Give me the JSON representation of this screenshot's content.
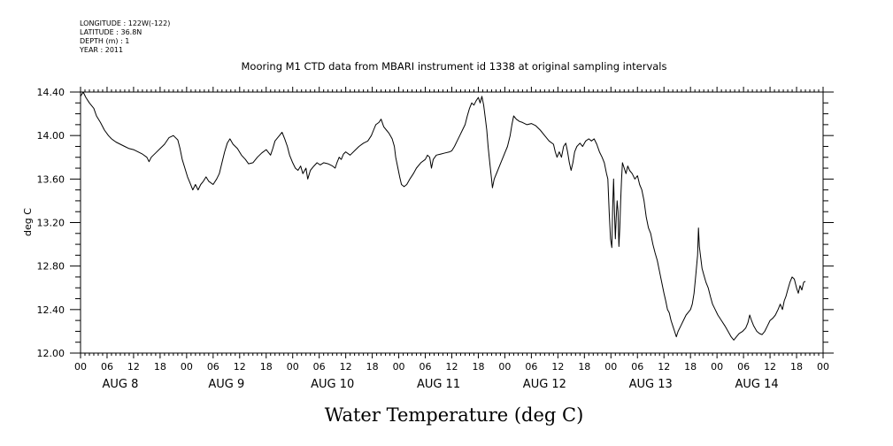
{
  "meta_lines": [
    "LONGITUDE : 122W(-122)",
    "LATITUDE : 36.8N",
    "DEPTH (m) : 1",
    "YEAR : 2011"
  ],
  "chart_data": {
    "type": "line",
    "title": "Mooring M1 CTD data from MBARI instrument id 1338 at original sampling intervals",
    "xlabel": "",
    "ylabel": "deg C",
    "bottom_title": "Water Temperature (deg C)",
    "x_unit": "hours since 2011-08-08 00:00",
    "xlim": [
      0,
      168
    ],
    "ylim": [
      12.0,
      14.4
    ],
    "yticks": [
      12.0,
      12.4,
      12.8,
      13.2,
      13.6,
      14.0,
      14.4
    ],
    "ytick_labels": [
      "12.00",
      "12.40",
      "12.80",
      "13.20",
      "13.60",
      "14.00",
      "14.40"
    ],
    "xtick_hours": [
      0,
      6,
      12,
      18,
      24,
      30,
      36,
      42,
      48,
      54,
      60,
      66,
      72,
      78,
      84,
      90,
      96,
      102,
      108,
      114,
      120,
      126,
      132,
      138,
      144,
      150,
      156,
      162,
      168
    ],
    "xtick_labels": [
      "00",
      "06",
      "12",
      "18",
      "00",
      "06",
      "12",
      "18",
      "00",
      "06",
      "12",
      "18",
      "00",
      "06",
      "12",
      "18",
      "00",
      "06",
      "12",
      "18",
      "00",
      "06",
      "12",
      "18",
      "00",
      "06",
      "12",
      "18",
      "00"
    ],
    "day_labels": [
      {
        "text": "AUG  8",
        "hour": 9
      },
      {
        "text": "AUG  9",
        "hour": 33
      },
      {
        "text": "AUG 10",
        "hour": 57
      },
      {
        "text": "AUG 11",
        "hour": 81
      },
      {
        "text": "AUG 12",
        "hour": 105
      },
      {
        "text": "AUG 13",
        "hour": 129
      },
      {
        "text": "AUG 14",
        "hour": 153
      }
    ],
    "grid": false,
    "series": [
      {
        "name": "",
        "color": "#000000",
        "points": [
          [
            0,
            14.36
          ],
          [
            0.6,
            14.4
          ],
          [
            1.2,
            14.35
          ],
          [
            2,
            14.3
          ],
          [
            3,
            14.25
          ],
          [
            3.6,
            14.18
          ],
          [
            4.5,
            14.12
          ],
          [
            5.4,
            14.05
          ],
          [
            6.3,
            14.0
          ],
          [
            7,
            13.97
          ],
          [
            8,
            13.94
          ],
          [
            9,
            13.92
          ],
          [
            10,
            13.9
          ],
          [
            11,
            13.88
          ],
          [
            12,
            13.87
          ],
          [
            13,
            13.85
          ],
          [
            14,
            13.83
          ],
          [
            15,
            13.8
          ],
          [
            15.5,
            13.76
          ],
          [
            16,
            13.8
          ],
          [
            17,
            13.84
          ],
          [
            18,
            13.88
          ],
          [
            19,
            13.92
          ],
          [
            20,
            13.98
          ],
          [
            21,
            14.0
          ],
          [
            22,
            13.96
          ],
          [
            22.5,
            13.88
          ],
          [
            23,
            13.78
          ],
          [
            23.6,
            13.7
          ],
          [
            24.2,
            13.62
          ],
          [
            24.8,
            13.56
          ],
          [
            25.4,
            13.5
          ],
          [
            26,
            13.55
          ],
          [
            26.6,
            13.5
          ],
          [
            27.2,
            13.55
          ],
          [
            27.8,
            13.58
          ],
          [
            28.4,
            13.62
          ],
          [
            29,
            13.58
          ],
          [
            30,
            13.55
          ],
          [
            30.8,
            13.6
          ],
          [
            31.4,
            13.65
          ],
          [
            32,
            13.75
          ],
          [
            32.6,
            13.85
          ],
          [
            33.2,
            13.93
          ],
          [
            33.8,
            13.97
          ],
          [
            34.5,
            13.92
          ],
          [
            35.5,
            13.88
          ],
          [
            36.4,
            13.82
          ],
          [
            37.3,
            13.78
          ],
          [
            38,
            13.74
          ],
          [
            39,
            13.75
          ],
          [
            40,
            13.8
          ],
          [
            41,
            13.84
          ],
          [
            42,
            13.87
          ],
          [
            43,
            13.82
          ],
          [
            43.5,
            13.88
          ],
          [
            44,
            13.95
          ],
          [
            45,
            14.0
          ],
          [
            45.6,
            14.03
          ],
          [
            46.2,
            13.97
          ],
          [
            46.8,
            13.9
          ],
          [
            47.3,
            13.82
          ],
          [
            48,
            13.75
          ],
          [
            48.6,
            13.7
          ],
          [
            49.2,
            13.68
          ],
          [
            49.8,
            13.72
          ],
          [
            50.3,
            13.65
          ],
          [
            51,
            13.7
          ],
          [
            51.4,
            13.6
          ],
          [
            52,
            13.68
          ],
          [
            52.8,
            13.72
          ],
          [
            53.5,
            13.75
          ],
          [
            54.2,
            13.73
          ],
          [
            55,
            13.75
          ],
          [
            56,
            13.74
          ],
          [
            57,
            13.72
          ],
          [
            57.6,
            13.7
          ],
          [
            58,
            13.75
          ],
          [
            58.5,
            13.8
          ],
          [
            59,
            13.78
          ],
          [
            59.5,
            13.83
          ],
          [
            60,
            13.85
          ],
          [
            61,
            13.82
          ],
          [
            62,
            13.86
          ],
          [
            63,
            13.9
          ],
          [
            64,
            13.93
          ],
          [
            65,
            13.95
          ],
          [
            65.8,
            14.0
          ],
          [
            66.3,
            14.05
          ],
          [
            66.8,
            14.1
          ],
          [
            67.5,
            14.12
          ],
          [
            68,
            14.15
          ],
          [
            68.6,
            14.08
          ],
          [
            69.2,
            14.05
          ],
          [
            69.8,
            14.02
          ],
          [
            70.5,
            13.97
          ],
          [
            71,
            13.9
          ],
          [
            71.3,
            13.8
          ],
          [
            71.8,
            13.7
          ],
          [
            72.2,
            13.62
          ],
          [
            72.6,
            13.55
          ],
          [
            73.2,
            13.53
          ],
          [
            73.8,
            13.55
          ],
          [
            74.5,
            13.6
          ],
          [
            75.3,
            13.65
          ],
          [
            76,
            13.7
          ],
          [
            77,
            13.75
          ],
          [
            78,
            13.78
          ],
          [
            78.5,
            13.82
          ],
          [
            79,
            13.8
          ],
          [
            79.4,
            13.7
          ],
          [
            79.8,
            13.78
          ],
          [
            80.5,
            13.82
          ],
          [
            81.5,
            13.83
          ],
          [
            82.5,
            13.84
          ],
          [
            83.5,
            13.85
          ],
          [
            84,
            13.86
          ],
          [
            84.6,
            13.9
          ],
          [
            85.2,
            13.95
          ],
          [
            85.8,
            14.0
          ],
          [
            86.4,
            14.05
          ],
          [
            87,
            14.1
          ],
          [
            87.5,
            14.18
          ],
          [
            88,
            14.25
          ],
          [
            88.5,
            14.3
          ],
          [
            89,
            14.28
          ],
          [
            89.5,
            14.32
          ],
          [
            90,
            14.35
          ],
          [
            90.4,
            14.3
          ],
          [
            90.8,
            14.36
          ],
          [
            91.2,
            14.28
          ],
          [
            91.6,
            14.15
          ],
          [
            91.9,
            14.05
          ],
          [
            92.2,
            13.9
          ],
          [
            92.6,
            13.75
          ],
          [
            93,
            13.6
          ],
          [
            93.2,
            13.52
          ],
          [
            93.6,
            13.6
          ],
          [
            94.2,
            13.66
          ],
          [
            94.8,
            13.72
          ],
          [
            95.4,
            13.78
          ],
          [
            96,
            13.84
          ],
          [
            96.6,
            13.9
          ],
          [
            97.2,
            14.0
          ],
          [
            97.6,
            14.1
          ],
          [
            98,
            14.18
          ],
          [
            98.6,
            14.15
          ],
          [
            99.3,
            14.13
          ],
          [
            100,
            14.12
          ],
          [
            101,
            14.1
          ],
          [
            102,
            14.11
          ],
          [
            103,
            14.09
          ],
          [
            104,
            14.05
          ],
          [
            105,
            14.0
          ],
          [
            106,
            13.95
          ],
          [
            107,
            13.92
          ],
          [
            107.4,
            13.85
          ],
          [
            107.8,
            13.8
          ],
          [
            108.3,
            13.85
          ],
          [
            108.8,
            13.8
          ],
          [
            109.3,
            13.9
          ],
          [
            109.8,
            13.93
          ],
          [
            110.2,
            13.85
          ],
          [
            110.6,
            13.75
          ],
          [
            111,
            13.68
          ],
          [
            111.4,
            13.75
          ],
          [
            111.8,
            13.85
          ],
          [
            112.3,
            13.9
          ],
          [
            113,
            13.93
          ],
          [
            113.6,
            13.9
          ],
          [
            114.3,
            13.95
          ],
          [
            115,
            13.97
          ],
          [
            115.6,
            13.95
          ],
          [
            116.2,
            13.97
          ],
          [
            116.8,
            13.92
          ],
          [
            117.4,
            13.85
          ],
          [
            118,
            13.8
          ],
          [
            118.5,
            13.75
          ],
          [
            119,
            13.65
          ],
          [
            119.3,
            13.6
          ],
          [
            119.6,
            13.3
          ],
          [
            119.9,
            13.05
          ],
          [
            120.2,
            12.97
          ],
          [
            120.4,
            13.35
          ],
          [
            120.6,
            13.6
          ],
          [
            120.8,
            13.3
          ],
          [
            121,
            13.05
          ],
          [
            121.2,
            13.25
          ],
          [
            121.4,
            13.4
          ],
          [
            121.6,
            13.3
          ],
          [
            121.8,
            12.98
          ],
          [
            122,
            13.15
          ],
          [
            122.2,
            13.4
          ],
          [
            122.4,
            13.6
          ],
          [
            122.6,
            13.75
          ],
          [
            123,
            13.7
          ],
          [
            123.4,
            13.65
          ],
          [
            123.8,
            13.72
          ],
          [
            124.2,
            13.68
          ],
          [
            124.8,
            13.65
          ],
          [
            125.4,
            13.6
          ],
          [
            126,
            13.63
          ],
          [
            126.5,
            13.55
          ],
          [
            127,
            13.5
          ],
          [
            127.5,
            13.4
          ],
          [
            128,
            13.25
          ],
          [
            128.5,
            13.15
          ],
          [
            129,
            13.1
          ],
          [
            129.5,
            13.0
          ],
          [
            130,
            12.92
          ],
          [
            130.5,
            12.85
          ],
          [
            131,
            12.75
          ],
          [
            131.5,
            12.65
          ],
          [
            132,
            12.55
          ],
          [
            132.4,
            12.48
          ],
          [
            132.8,
            12.4
          ],
          [
            133.2,
            12.37
          ],
          [
            133.6,
            12.3
          ],
          [
            134,
            12.25
          ],
          [
            134.4,
            12.2
          ],
          [
            134.8,
            12.15
          ],
          [
            135.2,
            12.2
          ],
          [
            135.8,
            12.25
          ],
          [
            136.4,
            12.3
          ],
          [
            137,
            12.35
          ],
          [
            137.6,
            12.38
          ],
          [
            138,
            12.4
          ],
          [
            138.4,
            12.45
          ],
          [
            138.8,
            12.55
          ],
          [
            139.2,
            12.72
          ],
          [
            139.6,
            12.9
          ],
          [
            139.8,
            13.15
          ],
          [
            140,
            12.98
          ],
          [
            140.3,
            12.88
          ],
          [
            140.6,
            12.78
          ],
          [
            141,
            12.72
          ],
          [
            141.5,
            12.65
          ],
          [
            142,
            12.6
          ],
          [
            142.5,
            12.52
          ],
          [
            143,
            12.45
          ],
          [
            143.6,
            12.4
          ],
          [
            144.2,
            12.35
          ],
          [
            145,
            12.3
          ],
          [
            145.8,
            12.25
          ],
          [
            146.5,
            12.2
          ],
          [
            147.2,
            12.15
          ],
          [
            147.8,
            12.12
          ],
          [
            148.4,
            12.15
          ],
          [
            149,
            12.18
          ],
          [
            149.8,
            12.2
          ],
          [
            150.5,
            12.23
          ],
          [
            151,
            12.28
          ],
          [
            151.4,
            12.35
          ],
          [
            151.8,
            12.3
          ],
          [
            152.3,
            12.25
          ],
          [
            153,
            12.2
          ],
          [
            153.6,
            12.18
          ],
          [
            154.2,
            12.17
          ],
          [
            154.8,
            12.2
          ],
          [
            155.4,
            12.25
          ],
          [
            156,
            12.3
          ],
          [
            156.6,
            12.32
          ],
          [
            157.2,
            12.35
          ],
          [
            157.8,
            12.4
          ],
          [
            158.3,
            12.45
          ],
          [
            158.8,
            12.4
          ],
          [
            159.2,
            12.48
          ],
          [
            159.6,
            12.52
          ],
          [
            160,
            12.58
          ],
          [
            160.5,
            12.65
          ],
          [
            161,
            12.7
          ],
          [
            161.5,
            12.68
          ],
          [
            162,
            12.6
          ],
          [
            162.4,
            12.55
          ],
          [
            162.8,
            12.62
          ],
          [
            163.2,
            12.58
          ],
          [
            163.6,
            12.65
          ],
          [
            164,
            12.66
          ]
        ]
      }
    ]
  }
}
